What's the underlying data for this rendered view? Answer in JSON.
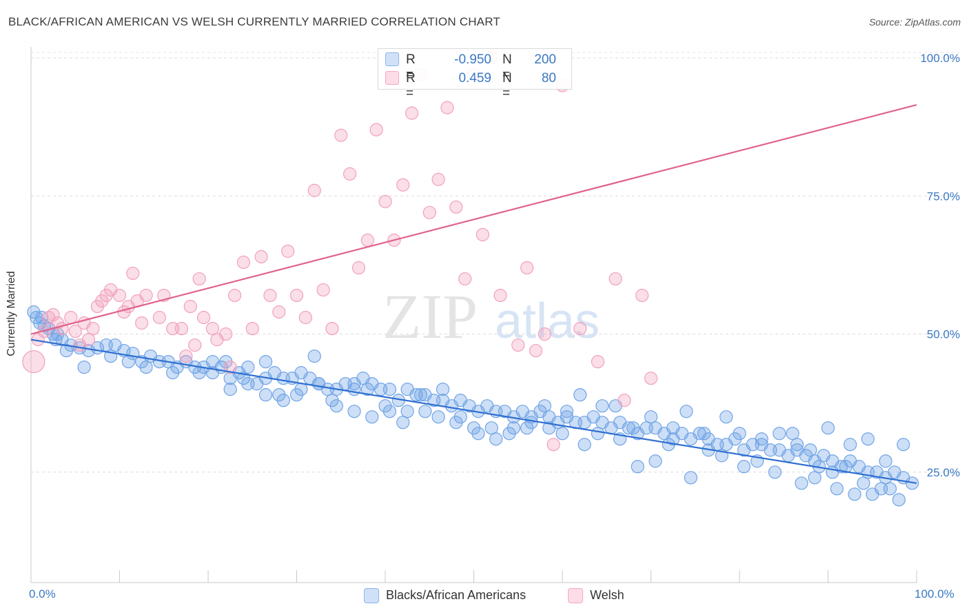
{
  "header": {
    "title": "BLACK/AFRICAN AMERICAN VS WELSH CURRENTLY MARRIED CORRELATION CHART",
    "source": "Source: ZipAtlas.com"
  },
  "watermark": {
    "zip": "ZIP",
    "atlas": "atlas"
  },
  "legend_top": {
    "rows": [
      {
        "r_label": "R =",
        "r_value": "-0.950",
        "n_label": "N =",
        "n_value": "200",
        "color": "#8ab4ea"
      },
      {
        "r_label": "R =",
        "r_value": "0.459",
        "n_label": "N =",
        "n_value": "80",
        "color": "#f4a8c2"
      }
    ]
  },
  "legend_bottom": {
    "items": [
      {
        "label": "Blacks/African Americans",
        "color": "#8ab4ea"
      },
      {
        "label": "Welsh",
        "color": "#f4a8c2"
      }
    ]
  },
  "chart_data": {
    "type": "scatter",
    "title": "BLACK/AFRICAN AMERICAN VS WELSH CURRENTLY MARRIED CORRELATION CHART",
    "xlabel": "",
    "ylabel": "Currently Married",
    "xlim": [
      0,
      100
    ],
    "ylim": [
      5,
      102
    ],
    "x_tick_labels": [
      "0.0%",
      "100.0%"
    ],
    "y_ticks": [
      25,
      50,
      75,
      100
    ],
    "y_tick_labels": [
      "25.0%",
      "50.0%",
      "75.0%",
      "100.0%"
    ],
    "grid": true,
    "legend": "bottom",
    "series": [
      {
        "name": "Blacks/African Americans",
        "color": "#6fa3e6",
        "line_color": "#2f6fd1",
        "r": -0.95,
        "n": 200,
        "trend": {
          "x": [
            0,
            100
          ],
          "y": [
            49.0,
            23.0
          ]
        },
        "points": [
          [
            0.3,
            54
          ],
          [
            0.6,
            53
          ],
          [
            1.0,
            52
          ],
          [
            1.5,
            51.5
          ],
          [
            2.0,
            51
          ],
          [
            2.5,
            50
          ],
          [
            3.0,
            50
          ],
          [
            3.5,
            49
          ],
          [
            4.5,
            48
          ],
          [
            5.5,
            47.5
          ],
          [
            6.5,
            47
          ],
          [
            7.5,
            47.5
          ],
          [
            8.5,
            48
          ],
          [
            9.5,
            48
          ],
          [
            10.5,
            47
          ],
          [
            11.5,
            46.5
          ],
          [
            12.5,
            45
          ],
          [
            13.5,
            46
          ],
          [
            14.5,
            45
          ],
          [
            15.5,
            45
          ],
          [
            16.5,
            44
          ],
          [
            17.5,
            45
          ],
          [
            18.5,
            44
          ],
          [
            19.5,
            44
          ],
          [
            20.5,
            45
          ],
          [
            21.5,
            44
          ],
          [
            22.5,
            42
          ],
          [
            23.5,
            43
          ],
          [
            24.5,
            44
          ],
          [
            25.5,
            41
          ],
          [
            26.5,
            42
          ],
          [
            27.5,
            43
          ],
          [
            28.5,
            42
          ],
          [
            29.5,
            42
          ],
          [
            30.5,
            43
          ],
          [
            31.5,
            42
          ],
          [
            32.5,
            41
          ],
          [
            33.5,
            40
          ],
          [
            34.5,
            40
          ],
          [
            35.5,
            41
          ],
          [
            36.5,
            40
          ],
          [
            37.5,
            42
          ],
          [
            38.5,
            41
          ],
          [
            39.5,
            40
          ],
          [
            40.5,
            40
          ],
          [
            41.5,
            38
          ],
          [
            42.5,
            40
          ],
          [
            43.5,
            39
          ],
          [
            44.5,
            39
          ],
          [
            45.5,
            38
          ],
          [
            46.5,
            38
          ],
          [
            47.5,
            37
          ],
          [
            48.5,
            38
          ],
          [
            49.5,
            37
          ],
          [
            50.5,
            36
          ],
          [
            51.5,
            37
          ],
          [
            52.5,
            36
          ],
          [
            53.5,
            36
          ],
          [
            54.5,
            35
          ],
          [
            55.5,
            36
          ],
          [
            56.5,
            35
          ],
          [
            57.5,
            36
          ],
          [
            58.5,
            35
          ],
          [
            59.5,
            34
          ],
          [
            60.5,
            35
          ],
          [
            61.5,
            34
          ],
          [
            62.5,
            34
          ],
          [
            63.5,
            35
          ],
          [
            64.5,
            34
          ],
          [
            65.5,
            33
          ],
          [
            66.5,
            34
          ],
          [
            67.5,
            33
          ],
          [
            68.5,
            32
          ],
          [
            69.5,
            33
          ],
          [
            70.5,
            33
          ],
          [
            71.5,
            32
          ],
          [
            72.5,
            33
          ],
          [
            73.5,
            32
          ],
          [
            74.5,
            31
          ],
          [
            75.5,
            32
          ],
          [
            76.5,
            31
          ],
          [
            77.5,
            30
          ],
          [
            78.5,
            30
          ],
          [
            79.5,
            31
          ],
          [
            80.5,
            29
          ],
          [
            81.5,
            30
          ],
          [
            82.5,
            30
          ],
          [
            83.5,
            29
          ],
          [
            84.5,
            29
          ],
          [
            85.5,
            28
          ],
          [
            86.5,
            29
          ],
          [
            87.5,
            28
          ],
          [
            88.5,
            27
          ],
          [
            89.5,
            28
          ],
          [
            90.5,
            27
          ],
          [
            91.5,
            26
          ],
          [
            92.5,
            27
          ],
          [
            93.5,
            26
          ],
          [
            94.5,
            25
          ],
          [
            95.5,
            25
          ],
          [
            96.5,
            24
          ],
          [
            97.5,
            25
          ],
          [
            98.5,
            24
          ],
          [
            99.5,
            23
          ],
          [
            1.2,
            53
          ],
          [
            2.8,
            49
          ],
          [
            4.0,
            47
          ],
          [
            6.0,
            44
          ],
          [
            9.0,
            46
          ],
          [
            11.0,
            45
          ],
          [
            13.0,
            44
          ],
          [
            16.0,
            43
          ],
          [
            19.0,
            43
          ],
          [
            22.0,
            45
          ],
          [
            24.0,
            42
          ],
          [
            26.5,
            45
          ],
          [
            28.0,
            39
          ],
          [
            30.0,
            39
          ],
          [
            32.0,
            46
          ],
          [
            34.0,
            38
          ],
          [
            36.5,
            36
          ],
          [
            38.0,
            40
          ],
          [
            40.0,
            37
          ],
          [
            42.0,
            34
          ],
          [
            44.0,
            39
          ],
          [
            46.0,
            35
          ],
          [
            48.0,
            34
          ],
          [
            50.0,
            33
          ],
          [
            52.0,
            33
          ],
          [
            54.0,
            32
          ],
          [
            56.0,
            33
          ],
          [
            58.0,
            37
          ],
          [
            60.0,
            32
          ],
          [
            62.0,
            39
          ],
          [
            64.0,
            32
          ],
          [
            66.0,
            37
          ],
          [
            68.0,
            33
          ],
          [
            70.0,
            35
          ],
          [
            72.0,
            30
          ],
          [
            74.0,
            36
          ],
          [
            76.0,
            32
          ],
          [
            78.0,
            28
          ],
          [
            80.0,
            32
          ],
          [
            82.0,
            27
          ],
          [
            84.0,
            25
          ],
          [
            86.0,
            32
          ],
          [
            88.0,
            29
          ],
          [
            90.0,
            33
          ],
          [
            92.0,
            26
          ],
          [
            94.0,
            23
          ],
          [
            96.0,
            22
          ],
          [
            98.0,
            20
          ],
          [
            98.5,
            30
          ],
          [
            96.5,
            27
          ],
          [
            94.5,
            31
          ],
          [
            92.5,
            30
          ],
          [
            90.5,
            25
          ],
          [
            88.5,
            24
          ],
          [
            86.5,
            30
          ],
          [
            84.5,
            32
          ],
          [
            82.5,
            31
          ],
          [
            80.5,
            26
          ],
          [
            78.5,
            35
          ],
          [
            76.5,
            29
          ],
          [
            74.5,
            24
          ],
          [
            72.5,
            31
          ],
          [
            70.5,
            27
          ],
          [
            68.5,
            26
          ],
          [
            66.5,
            31
          ],
          [
            64.5,
            37
          ],
          [
            62.5,
            30
          ],
          [
            60.5,
            36
          ],
          [
            58.5,
            33
          ],
          [
            56.5,
            34
          ],
          [
            54.5,
            33
          ],
          [
            52.5,
            31
          ],
          [
            50.5,
            32
          ],
          [
            48.5,
            35
          ],
          [
            46.5,
            40
          ],
          [
            44.5,
            36
          ],
          [
            42.5,
            36
          ],
          [
            40.5,
            36
          ],
          [
            38.5,
            35
          ],
          [
            36.5,
            41
          ],
          [
            34.5,
            37
          ],
          [
            32.5,
            41
          ],
          [
            30.5,
            40
          ],
          [
            28.5,
            38
          ],
          [
            26.5,
            39
          ],
          [
            24.5,
            41
          ],
          [
            22.5,
            40
          ],
          [
            20.5,
            43
          ],
          [
            97,
            22
          ],
          [
            95,
            21
          ],
          [
            93,
            21
          ],
          [
            91,
            22
          ],
          [
            89,
            26
          ],
          [
            87,
            23
          ]
        ]
      },
      {
        "name": "Welsh",
        "color": "#f2a0bc",
        "line_color": "#e0628c",
        "r": 0.459,
        "n": 80,
        "trend": {
          "x": [
            0,
            100
          ],
          "y": [
            50.0,
            91.5
          ]
        },
        "points": [
          [
            0.3,
            45
          ],
          [
            0.8,
            49
          ],
          [
            1.5,
            50.5
          ],
          [
            2.0,
            53
          ],
          [
            2.5,
            53.5
          ],
          [
            3.0,
            52
          ],
          [
            3.5,
            51
          ],
          [
            4.5,
            53
          ],
          [
            5.0,
            50.5
          ],
          [
            5.5,
            48
          ],
          [
            6.0,
            52
          ],
          [
            6.5,
            49
          ],
          [
            7.0,
            51
          ],
          [
            7.5,
            55
          ],
          [
            8.0,
            56
          ],
          [
            8.5,
            57
          ],
          [
            9.0,
            58
          ],
          [
            10.0,
            57
          ],
          [
            10.5,
            54
          ],
          [
            11.0,
            55
          ],
          [
            11.5,
            61
          ],
          [
            12.0,
            56
          ],
          [
            12.5,
            52
          ],
          [
            13.0,
            57
          ],
          [
            14.5,
            53
          ],
          [
            15.0,
            57
          ],
          [
            16.0,
            51
          ],
          [
            17.0,
            51
          ],
          [
            17.5,
            46
          ],
          [
            18.0,
            55
          ],
          [
            18.5,
            48
          ],
          [
            19.0,
            60
          ],
          [
            19.5,
            53
          ],
          [
            20.5,
            51
          ],
          [
            21.0,
            49
          ],
          [
            22.0,
            50
          ],
          [
            22.5,
            44
          ],
          [
            23.0,
            57
          ],
          [
            24.0,
            63
          ],
          [
            25.0,
            51
          ],
          [
            26.0,
            64
          ],
          [
            27.0,
            57
          ],
          [
            28.0,
            54
          ],
          [
            29.0,
            65
          ],
          [
            30.0,
            57
          ],
          [
            31.0,
            53
          ],
          [
            32.0,
            76
          ],
          [
            33.0,
            58
          ],
          [
            34.0,
            51
          ],
          [
            35.0,
            86
          ],
          [
            36.0,
            79
          ],
          [
            37.0,
            62
          ],
          [
            38.0,
            67
          ],
          [
            39.0,
            87
          ],
          [
            40.0,
            74
          ],
          [
            41.0,
            67
          ],
          [
            42.0,
            77
          ],
          [
            43.0,
            90
          ],
          [
            44.0,
            97
          ],
          [
            45.0,
            72
          ],
          [
            46.0,
            78
          ],
          [
            47.0,
            91
          ],
          [
            48.0,
            73
          ],
          [
            49.0,
            60
          ],
          [
            50.0,
            97
          ],
          [
            51.0,
            68
          ],
          [
            52.0,
            100
          ],
          [
            53.0,
            57
          ],
          [
            55.0,
            48
          ],
          [
            56.0,
            62
          ],
          [
            57.0,
            47
          ],
          [
            58.0,
            50
          ],
          [
            59.0,
            30
          ],
          [
            60.0,
            95
          ],
          [
            62.0,
            51
          ],
          [
            64.0,
            45
          ],
          [
            66.0,
            60
          ],
          [
            67.0,
            38
          ],
          [
            69.0,
            57
          ],
          [
            70.0,
            42
          ]
        ]
      }
    ]
  }
}
